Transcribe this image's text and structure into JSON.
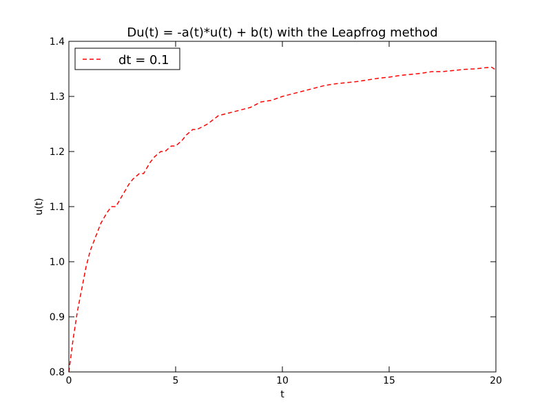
{
  "chart_data": {
    "type": "line",
    "title": "Du(t) = -a(t)*u(t) + b(t) with the Leapfrog method",
    "xlabel": "t",
    "ylabel": "u(t)",
    "xlim": [
      0,
      20
    ],
    "ylim": [
      0.8,
      1.4
    ],
    "xticks": [
      0,
      5,
      10,
      15,
      20
    ],
    "xtick_labels": [
      "0",
      "5",
      "10",
      "15",
      "20"
    ],
    "yticks": [
      0.8,
      0.9,
      1.0,
      1.1,
      1.2,
      1.3,
      1.4
    ],
    "ytick_labels": [
      "0.8",
      "0.9",
      "1.0",
      "1.1",
      "1.2",
      "1.3",
      "1.4"
    ],
    "grid": false,
    "legend_position": "top-left",
    "series": [
      {
        "name": "dt = 0.1",
        "color": "#ff0000",
        "line_style": "dashed",
        "x": [
          0.0,
          0.2,
          0.4,
          0.6,
          0.8,
          1.0,
          1.2,
          1.5,
          1.8,
          2.0,
          2.2,
          2.5,
          2.8,
          3.0,
          3.3,
          3.5,
          3.8,
          4.0,
          4.3,
          4.5,
          4.8,
          5.0,
          5.3,
          5.5,
          5.8,
          6.0,
          6.5,
          7.0,
          7.5,
          8.0,
          8.5,
          9.0,
          9.5,
          10.0,
          10.5,
          11.0,
          11.5,
          12.0,
          12.5,
          13.0,
          13.5,
          14.0,
          14.5,
          15.0,
          15.5,
          16.0,
          16.5,
          17.0,
          17.5,
          18.0,
          18.5,
          19.0,
          19.5,
          19.8,
          20.0
        ],
        "y": [
          0.8,
          0.86,
          0.91,
          0.95,
          0.99,
          1.02,
          1.04,
          1.07,
          1.09,
          1.1,
          1.1,
          1.12,
          1.14,
          1.15,
          1.16,
          1.16,
          1.18,
          1.19,
          1.2,
          1.2,
          1.21,
          1.21,
          1.22,
          1.23,
          1.24,
          1.24,
          1.25,
          1.265,
          1.27,
          1.275,
          1.28,
          1.29,
          1.293,
          1.3,
          1.305,
          1.31,
          1.315,
          1.32,
          1.323,
          1.325,
          1.327,
          1.33,
          1.333,
          1.335,
          1.338,
          1.34,
          1.342,
          1.345,
          1.345,
          1.347,
          1.349,
          1.35,
          1.352,
          1.353,
          1.348
        ]
      }
    ]
  }
}
